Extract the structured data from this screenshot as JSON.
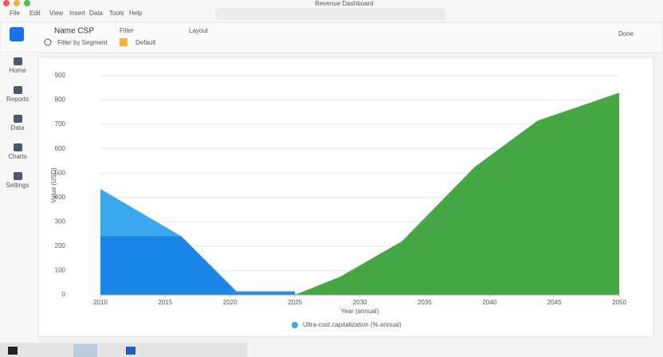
{
  "window": {
    "title": "Revenue Dashboard",
    "menu": [
      "File",
      "Edit",
      "View",
      "Insert",
      "Data",
      "Tools",
      "Help"
    ]
  },
  "sidebar": [
    "Home",
    "Reports",
    "Data",
    "Charts",
    "Settings"
  ],
  "toolbar": {
    "name": "Name CSP",
    "subtitle": "Filter by Segment",
    "filter": "Filter",
    "filter_value": "Default",
    "layout": "Layout",
    "done": "Done"
  },
  "chart_data": {
    "type": "area",
    "xlabel": "Year (annual)",
    "ylabel": "Value (USD)",
    "xlim": [
      0,
      8
    ],
    "xticks": [
      {
        "value": 0,
        "label": "2010"
      },
      {
        "value": 1,
        "label": "2015"
      },
      {
        "value": 2,
        "label": "2020"
      },
      {
        "value": 3,
        "label": "2025"
      },
      {
        "value": 4,
        "label": "2030"
      },
      {
        "value": 5,
        "label": "2035"
      },
      {
        "value": 6,
        "label": "2040"
      },
      {
        "value": 7,
        "label": "2045"
      },
      {
        "value": 8,
        "label": "2050"
      }
    ],
    "ylim": [
      0,
      900
    ],
    "yticks": [
      0,
      100,
      200,
      300,
      400,
      500,
      600,
      700,
      800,
      900
    ],
    "grid": true,
    "series": [
      {
        "name": "Ultra-cost capitalization (% annual)",
        "color": "#3aa7ee",
        "x": [
          0,
          1.25,
          2.1,
          3
        ],
        "values": [
          435,
          240,
          15,
          15
        ]
      },
      {
        "color": "#1a86e8",
        "x": [
          0,
          1.25,
          2.1,
          3
        ],
        "values": [
          240,
          240,
          10,
          10
        ]
      },
      {
        "color": "#45a845",
        "x": [
          3,
          3.7,
          4.65,
          5.77,
          6.74,
          8
        ],
        "values": [
          0,
          75,
          220,
          525,
          715,
          830
        ]
      }
    ]
  }
}
